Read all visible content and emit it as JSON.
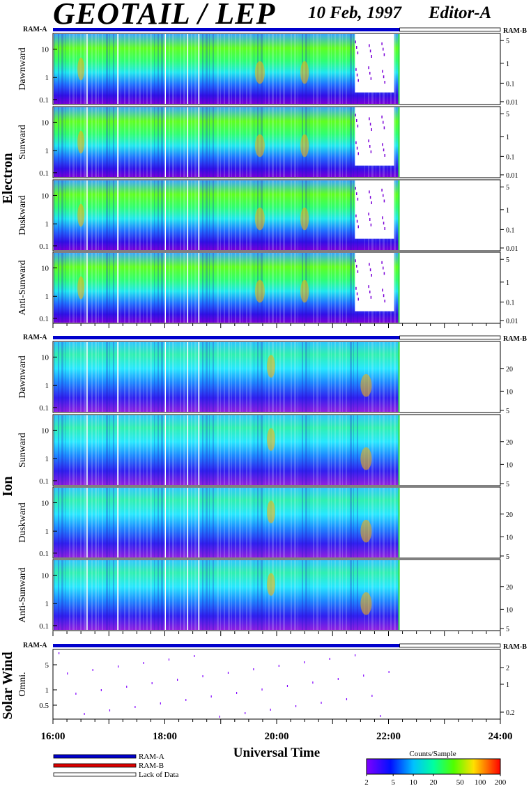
{
  "header": {
    "instrument": "GEOTAIL / LEP",
    "date": "10 Feb, 1997",
    "editor": "Editor-A"
  },
  "colors": {
    "ram_a": "#0000cc",
    "ram_b": "#dd0000",
    "lack_of_data": "#ffffff"
  },
  "bar_labels": {
    "left": "RAM-A",
    "right": "RAM-B"
  },
  "groups": [
    {
      "label": "Electron",
      "panels": [
        "Dawnward",
        "Sunward",
        "Duskward",
        "Anti-Sunward"
      ],
      "left_ticks": [
        "10",
        "1",
        "0.1"
      ],
      "right_ticks": [
        "5",
        "1",
        "0.1",
        "0.01"
      ]
    },
    {
      "label": "Ion",
      "panels": [
        "Dawnward",
        "Sunward",
        "Duskward",
        "Anti-Sunward"
      ],
      "left_ticks": [
        "10",
        "1",
        "0.1"
      ],
      "right_ticks": [
        "20",
        "10",
        "5"
      ]
    },
    {
      "label": "Solar Wind",
      "panels": [
        "Omni."
      ],
      "left_ticks": [
        "5",
        "1",
        "0.5"
      ],
      "right_ticks": [
        "2",
        "1",
        "0.2"
      ]
    }
  ],
  "legend": {
    "items": [
      "RAM-A",
      "RAM-B",
      "Lack of Data"
    ],
    "colorbar_title": "Counts/Sample",
    "colorbar_ticks": [
      "2",
      "5",
      "10",
      "20",
      "50",
      "100",
      "200"
    ]
  },
  "chart_data": {
    "type": "heatmap",
    "xlabel": "Universal Time",
    "x_ticks": [
      "16:00",
      "18:00",
      "20:00",
      "22:00",
      "24:00"
    ],
    "x_range_hours": [
      16,
      24
    ],
    "data_end_hour": 22.2,
    "sw_data_start_hour": 21.35,
    "colorbar_range": [
      2,
      200
    ],
    "colorbar_scale": "log"
  }
}
